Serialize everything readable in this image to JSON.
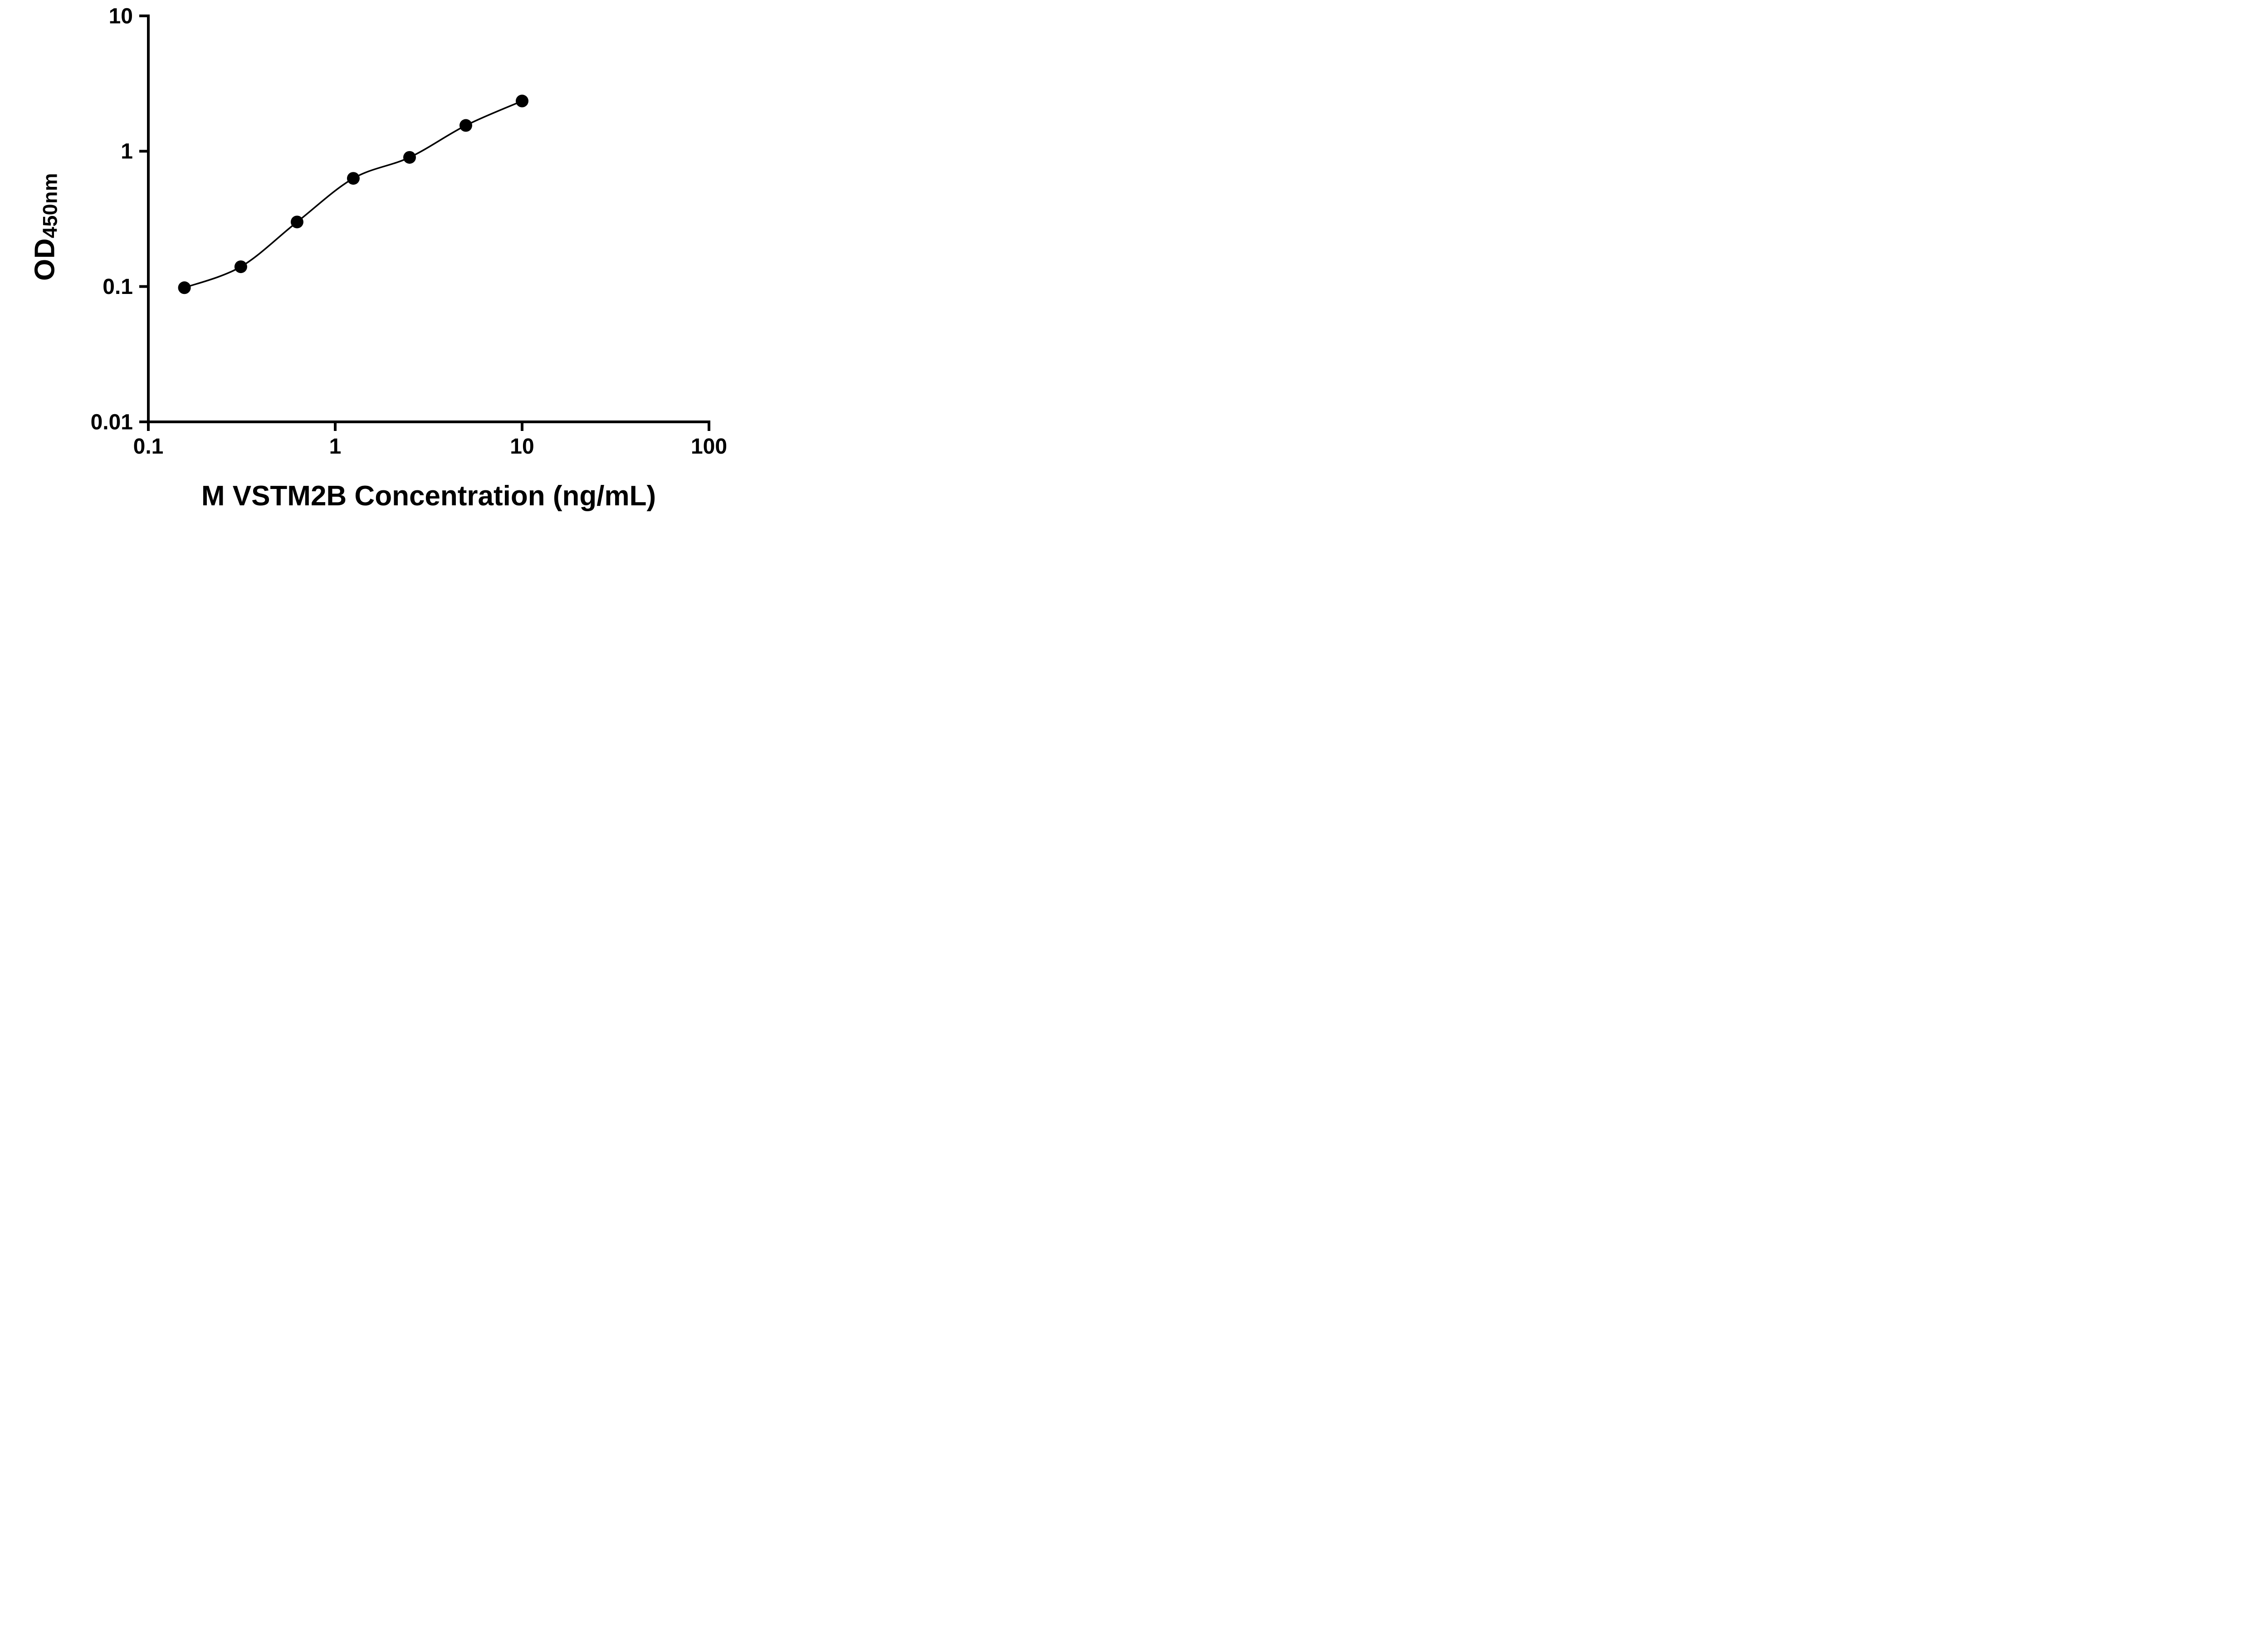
{
  "figure": {
    "background": "#ffffff",
    "ink_color": "#000000"
  },
  "chart_data": {
    "type": "scatter",
    "title": "",
    "xlabel": "M VSTM2B Concentration (ng/mL)",
    "ylabel_main": "OD",
    "ylabel_sub": "450nm",
    "xscale": "log",
    "yscale": "log",
    "xlim": [
      0.1,
      100
    ],
    "ylim": [
      0.01,
      10
    ],
    "x_ticks": [
      0.1,
      1,
      10,
      100
    ],
    "x_tick_labels": [
      "0.1",
      "1",
      "10",
      "100"
    ],
    "y_ticks": [
      0.01,
      0.1,
      1,
      10
    ],
    "y_tick_labels": [
      "0.01",
      "0.1",
      "1",
      "10"
    ],
    "grid": false,
    "legend": false,
    "series": [
      {
        "x": [
          0.156,
          0.3125,
          0.625,
          1.25,
          2.5,
          5,
          10
        ],
        "y": [
          0.098,
          0.14,
          0.3,
          0.63,
          0.9,
          1.55,
          2.35
        ],
        "marker": "circle",
        "marker_color": "#000000",
        "line_color": "#000000",
        "fit_line": true
      }
    ]
  }
}
